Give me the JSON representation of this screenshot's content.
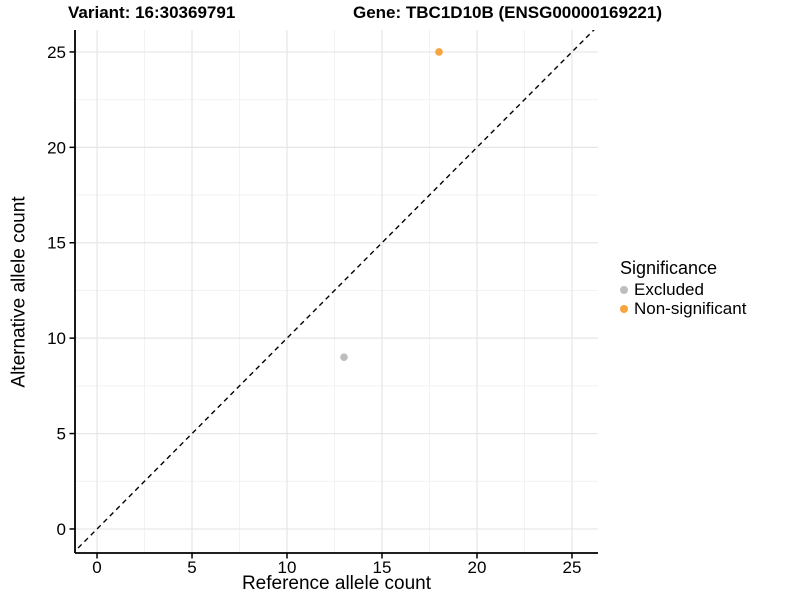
{
  "title": {
    "variant": "Variant: 16:30369791",
    "gene": "Gene: TBC1D10B (ENSG00000169221)"
  },
  "chart_data": {
    "type": "scatter",
    "xlabel": "Reference allele count",
    "ylabel": "Alternative allele count",
    "xlim": [
      -1.16,
      26.37
    ],
    "ylim": [
      -1.26,
      26.15
    ],
    "xticks": [
      0,
      5,
      10,
      15,
      20,
      25
    ],
    "yticks": [
      0,
      5,
      10,
      15,
      20,
      25
    ],
    "minor_ticks_x": [
      2.5,
      7.5,
      12.5,
      17.5,
      22.5
    ],
    "minor_ticks_y": [
      2.5,
      7.5,
      12.5,
      17.5,
      22.5
    ],
    "grid": true,
    "series": [
      {
        "name": "Excluded",
        "color": "#BEBEBE",
        "points": [
          {
            "x": 13,
            "y": 9
          }
        ]
      },
      {
        "name": "Non-significant",
        "color": "#F9A43C",
        "points": [
          {
            "x": 18,
            "y": 25
          }
        ]
      }
    ],
    "identity_line": {
      "slope": 1,
      "intercept": 0,
      "style": "dashed",
      "color": "#000000"
    },
    "legend": {
      "title": "Significance",
      "position": "right",
      "entries": [
        {
          "label": "Excluded",
          "color": "#BEBEBE"
        },
        {
          "label": "Non-significant",
          "color": "#F9A43C"
        }
      ]
    }
  },
  "colors": {
    "background": "#FFFFFF",
    "axis": "#000000",
    "grid_major": "#E6E6E6",
    "grid_minor": "#F2F2F2",
    "tick": "#000000",
    "text": "#000000"
  }
}
